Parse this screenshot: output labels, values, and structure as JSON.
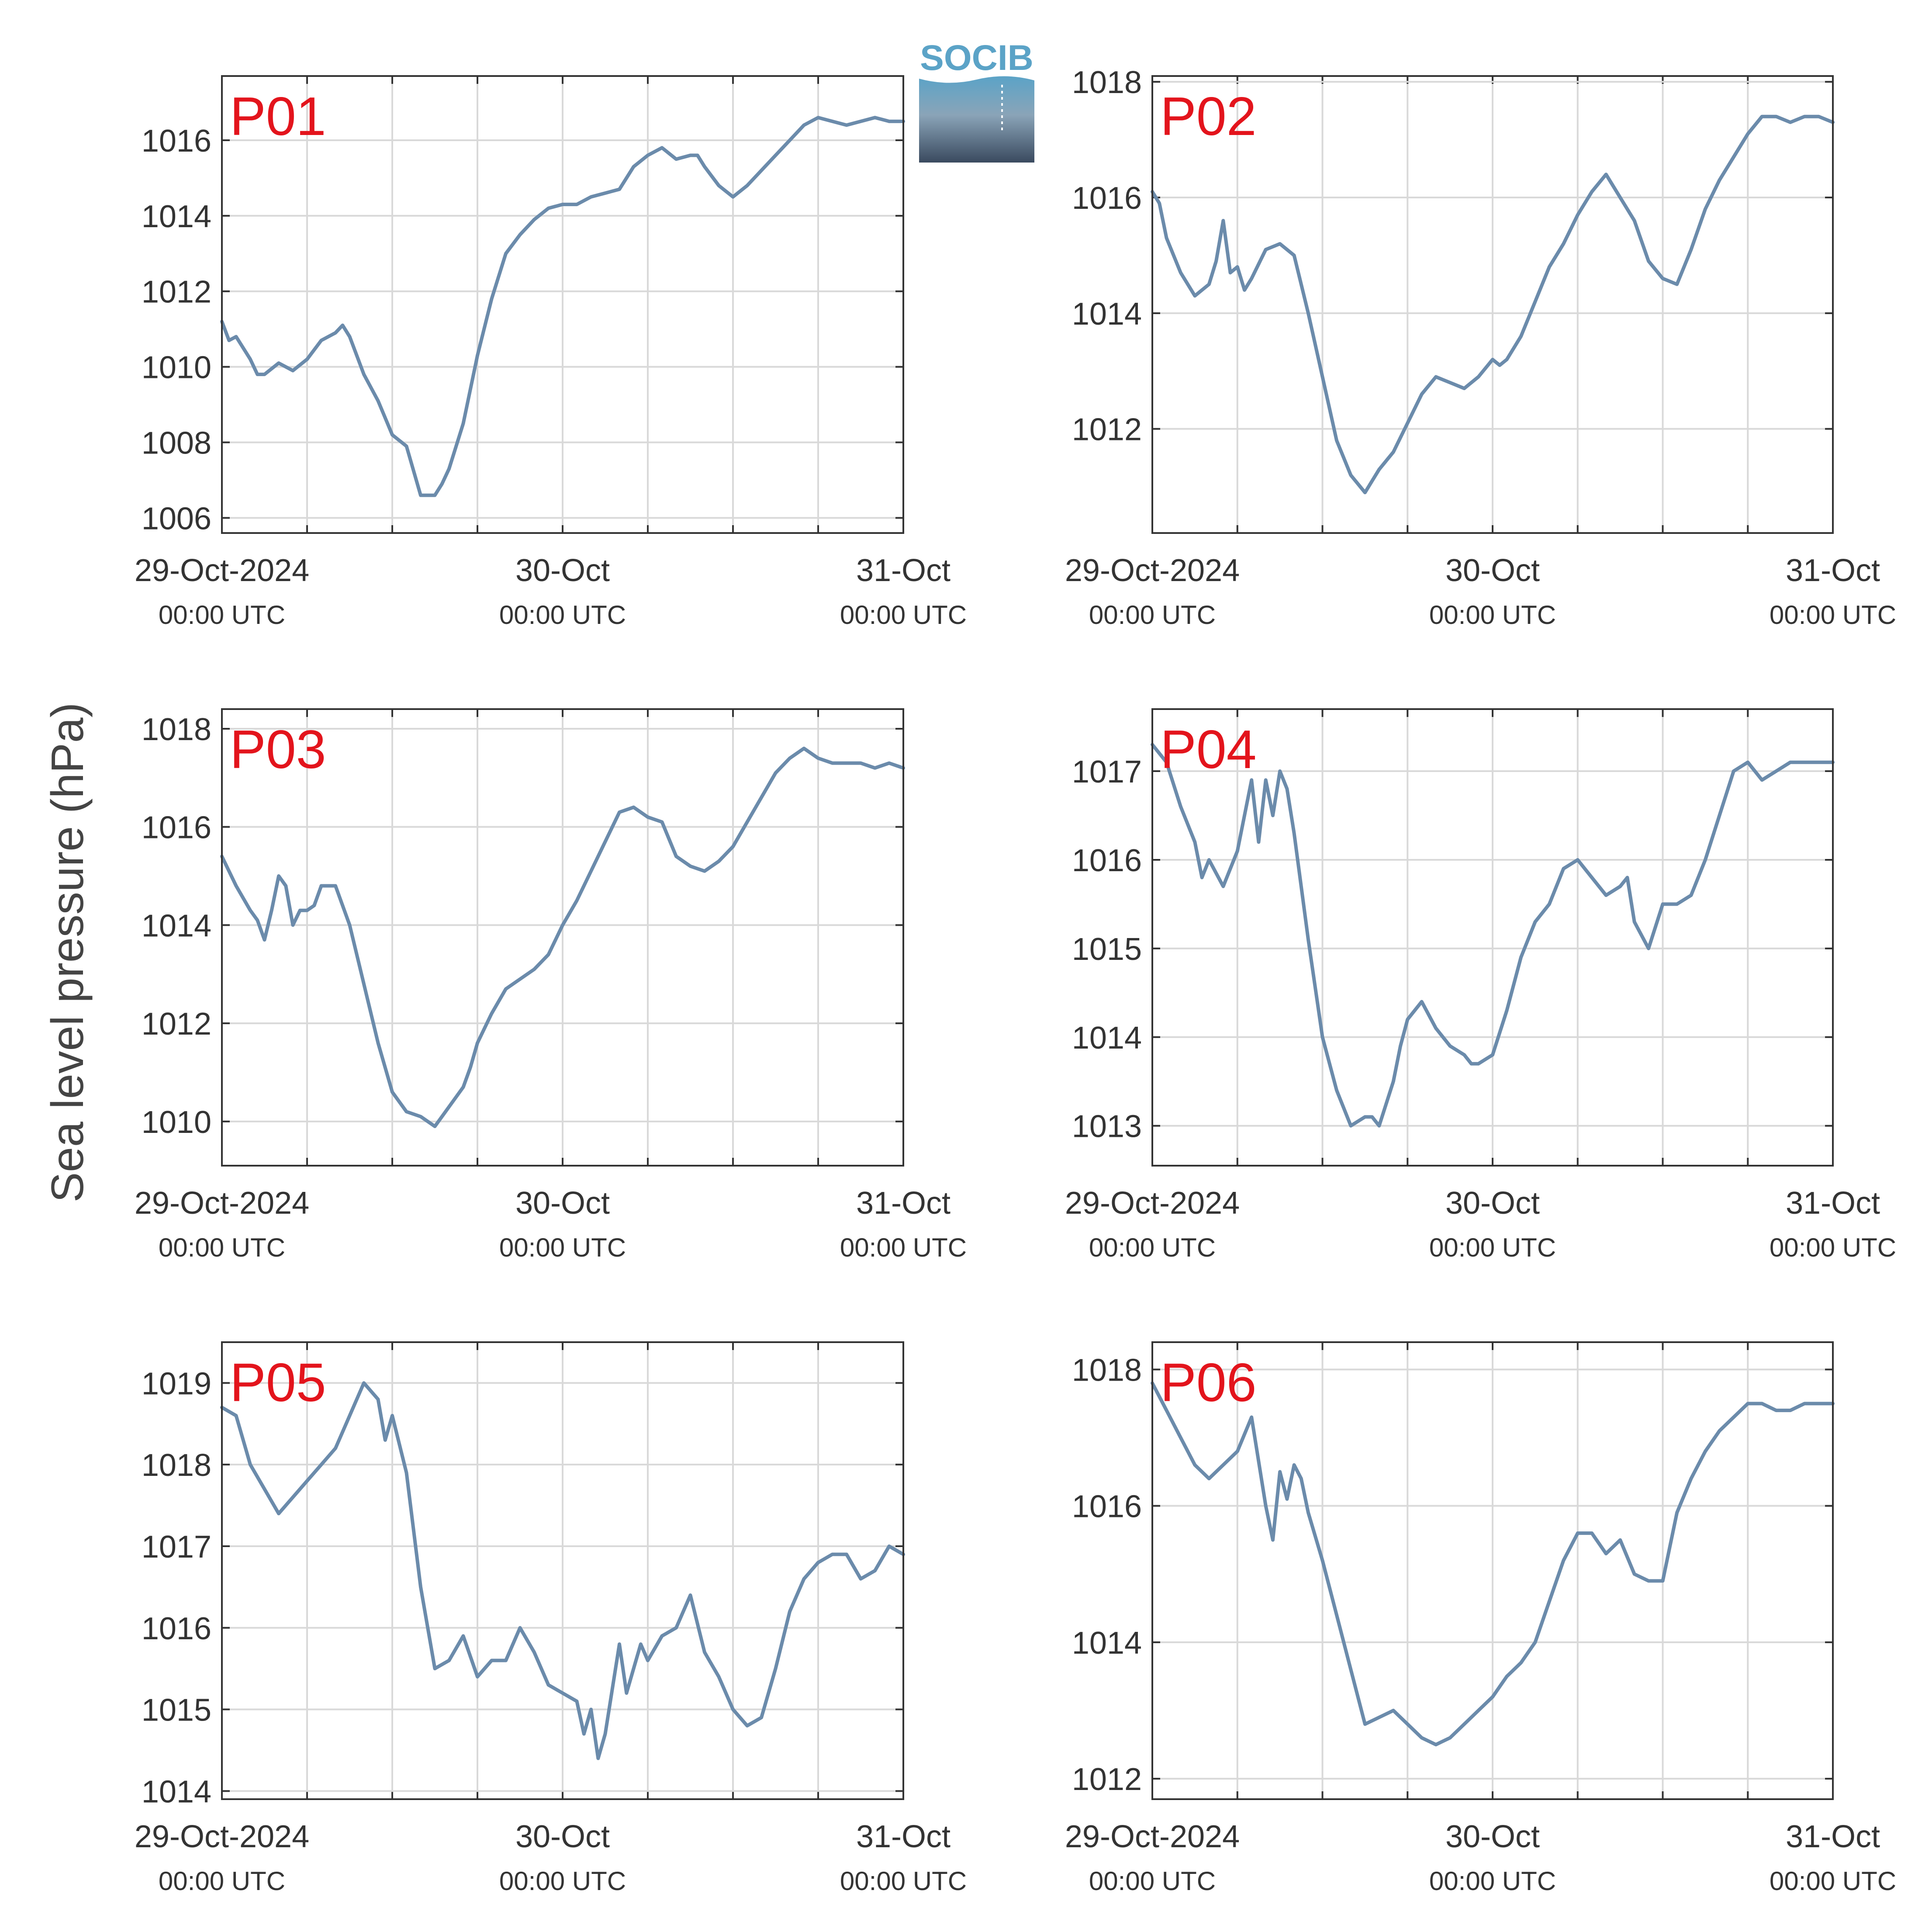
{
  "figure": {
    "ylabel": "Sea level pressure (hPa)",
    "line_color": "#6b8bab",
    "label_color": "#e3141c",
    "axis_color": "#333333",
    "grid_color": "#d9d9d9",
    "logo_text": "SOCIB",
    "logo_color": "#5ba3c7"
  },
  "x_ticks": [
    {
      "hours": 0,
      "line1": "29-Oct-2024",
      "line2": "00:00 UTC"
    },
    {
      "hours": 24,
      "line1": "30-Oct",
      "line2": "00:00 UTC"
    },
    {
      "hours": 48,
      "line1": "31-Oct",
      "line2": "00:00 UTC"
    }
  ],
  "chart_data": [
    {
      "type": "line",
      "title": "P01",
      "xlabel": "",
      "ylabel": "Sea level pressure (hPa)",
      "xlim_hours": [
        0,
        48
      ],
      "ylim": [
        1005.6,
        1017.7
      ],
      "yticks": [
        1006,
        1008,
        1010,
        1012,
        1014,
        1016
      ],
      "ytick_labels": [
        "1006",
        "1008",
        "1010",
        "1012",
        "1014",
        "1016"
      ],
      "grid": true,
      "x_hours": [
        0,
        0.5,
        1,
        2,
        2.5,
        3,
        4,
        5,
        6,
        7,
        8,
        8.5,
        9,
        10,
        11,
        12,
        13,
        14,
        15,
        15.5,
        16,
        17,
        18,
        19,
        20,
        21,
        22,
        23,
        24,
        25,
        26,
        27,
        28,
        29,
        30,
        31,
        32,
        33,
        33.5,
        34,
        35,
        36,
        37,
        38,
        39,
        40,
        41,
        42,
        43,
        44,
        45,
        46,
        47,
        48
      ],
      "values": [
        1011.2,
        1010.7,
        1010.8,
        1010.2,
        1009.8,
        1009.8,
        1010.1,
        1009.9,
        1010.2,
        1010.7,
        1010.9,
        1011.1,
        1010.8,
        1009.8,
        1009.1,
        1008.2,
        1007.9,
        1006.6,
        1006.6,
        1006.9,
        1007.3,
        1008.5,
        1010.3,
        1011.8,
        1013.0,
        1013.5,
        1013.9,
        1014.2,
        1014.3,
        1014.3,
        1014.5,
        1014.6,
        1014.7,
        1015.3,
        1015.6,
        1015.8,
        1015.5,
        1015.6,
        1015.6,
        1015.3,
        1014.8,
        1014.5,
        1014.8,
        1015.2,
        1015.6,
        1016.0,
        1016.4,
        1016.6,
        1016.5,
        1016.4,
        1016.5,
        1016.6,
        1016.5,
        1016.5
      ]
    },
    {
      "type": "line",
      "title": "P02",
      "xlabel": "",
      "ylabel": "Sea level pressure (hPa)",
      "xlim_hours": [
        0,
        48
      ],
      "ylim": [
        1010.2,
        1018.1
      ],
      "yticks": [
        1012,
        1014,
        1016,
        1018
      ],
      "ytick_labels": [
        "1012",
        "1014",
        "1016",
        "1018"
      ],
      "grid": true,
      "x_hours": [
        0,
        0.5,
        1,
        2,
        3,
        4,
        4.5,
        5,
        5.5,
        6,
        6.5,
        7,
        8,
        9,
        10,
        11,
        12,
        13,
        14,
        15,
        15.5,
        16,
        17,
        18,
        19,
        20,
        21,
        22,
        23,
        24,
        24.5,
        25,
        26,
        27,
        28,
        29,
        30,
        31,
        32,
        33,
        34,
        35,
        36,
        37,
        38,
        39,
        40,
        41,
        42,
        43,
        44,
        45,
        46,
        47,
        48
      ],
      "values": [
        1016.1,
        1015.9,
        1015.3,
        1014.7,
        1014.3,
        1014.5,
        1014.9,
        1015.6,
        1014.7,
        1014.8,
        1014.4,
        1014.6,
        1015.1,
        1015.2,
        1015.0,
        1014.0,
        1012.9,
        1011.8,
        1011.2,
        1010.9,
        1011.1,
        1011.3,
        1011.6,
        1012.1,
        1012.6,
        1012.9,
        1012.8,
        1012.7,
        1012.9,
        1013.2,
        1013.1,
        1013.2,
        1013.6,
        1014.2,
        1014.8,
        1015.2,
        1015.7,
        1016.1,
        1016.4,
        1016.0,
        1015.6,
        1014.9,
        1014.6,
        1014.5,
        1015.1,
        1015.8,
        1016.3,
        1016.7,
        1017.1,
        1017.4,
        1017.4,
        1017.3,
        1017.4,
        1017.4,
        1017.3
      ]
    },
    {
      "type": "line",
      "title": "P03",
      "xlabel": "",
      "ylabel": "Sea level pressure (hPa)",
      "xlim_hours": [
        0,
        48
      ],
      "ylim": [
        1009.1,
        1018.4
      ],
      "yticks": [
        1010,
        1012,
        1014,
        1016,
        1018
      ],
      "ytick_labels": [
        "1010",
        "1012",
        "1014",
        "1016",
        "1018"
      ],
      "grid": true,
      "x_hours": [
        0,
        1,
        2,
        2.5,
        3,
        3.5,
        4,
        4.5,
        5,
        5.5,
        6,
        6.5,
        7,
        8,
        9,
        10,
        11,
        12,
        13,
        14,
        15,
        16,
        17,
        17.5,
        18,
        19,
        20,
        21,
        22,
        23,
        24,
        25,
        26,
        27,
        28,
        29,
        30,
        31,
        32,
        33,
        34,
        35,
        36,
        37,
        38,
        39,
        40,
        41,
        42,
        43,
        44,
        45,
        46,
        47,
        48
      ],
      "values": [
        1015.4,
        1014.8,
        1014.3,
        1014.1,
        1013.7,
        1014.3,
        1015.0,
        1014.8,
        1014.0,
        1014.3,
        1014.3,
        1014.4,
        1014.8,
        1014.8,
        1014.0,
        1012.8,
        1011.6,
        1010.6,
        1010.2,
        1010.1,
        1009.9,
        1010.3,
        1010.7,
        1011.1,
        1011.6,
        1012.2,
        1012.7,
        1012.9,
        1013.1,
        1013.4,
        1014.0,
        1014.5,
        1015.1,
        1015.7,
        1016.3,
        1016.4,
        1016.2,
        1016.1,
        1015.4,
        1015.2,
        1015.1,
        1015.3,
        1015.6,
        1016.1,
        1016.6,
        1017.1,
        1017.4,
        1017.6,
        1017.4,
        1017.3,
        1017.3,
        1017.3,
        1017.2,
        1017.3,
        1017.2
      ]
    },
    {
      "type": "line",
      "title": "P04",
      "xlabel": "",
      "ylabel": "Sea level pressure (hPa)",
      "xlim_hours": [
        0,
        48
      ],
      "ylim": [
        1012.55,
        1017.7
      ],
      "yticks": [
        1013,
        1014,
        1015,
        1016,
        1017
      ],
      "ytick_labels": [
        "1013",
        "1014",
        "1015",
        "1016",
        "1017"
      ],
      "grid": true,
      "x_hours": [
        0,
        1,
        2,
        3,
        3.5,
        4,
        5,
        6,
        7,
        7.5,
        8,
        8.5,
        9,
        9.5,
        10,
        11,
        12,
        13,
        14,
        15,
        15.5,
        16,
        17,
        17.5,
        18,
        19,
        20,
        21,
        22,
        22.5,
        23,
        24,
        25,
        26,
        27,
        28,
        29,
        30,
        31,
        32,
        33,
        33.5,
        34,
        35,
        36,
        37,
        38,
        39,
        40,
        41,
        42,
        43,
        44,
        45,
        46,
        47,
        48
      ],
      "values": [
        1017.3,
        1017.1,
        1016.6,
        1016.2,
        1015.8,
        1016.0,
        1015.7,
        1016.1,
        1016.9,
        1016.2,
        1016.9,
        1016.5,
        1017.0,
        1016.8,
        1016.3,
        1015.1,
        1014.0,
        1013.4,
        1013.0,
        1013.1,
        1013.1,
        1013.0,
        1013.5,
        1013.9,
        1014.2,
        1014.4,
        1014.1,
        1013.9,
        1013.8,
        1013.7,
        1013.7,
        1013.8,
        1014.3,
        1014.9,
        1015.3,
        1015.5,
        1015.9,
        1016.0,
        1015.8,
        1015.6,
        1015.7,
        1015.8,
        1015.3,
        1015.0,
        1015.5,
        1015.5,
        1015.6,
        1016.0,
        1016.5,
        1017.0,
        1017.1,
        1016.9,
        1017.0,
        1017.1,
        1017.1,
        1017.1,
        1017.1
      ]
    },
    {
      "type": "line",
      "title": "P05",
      "xlabel": "",
      "ylabel": "Sea level pressure (hPa)",
      "xlim_hours": [
        0,
        48
      ],
      "ylim": [
        1013.9,
        1019.5
      ],
      "yticks": [
        1014,
        1015,
        1016,
        1017,
        1018,
        1019
      ],
      "ytick_labels": [
        "1014",
        "1015",
        "1016",
        "1017",
        "1018",
        "1019"
      ],
      "grid": true,
      "x_hours": [
        0,
        1,
        2,
        3,
        4,
        5,
        6,
        7,
        8,
        9,
        10,
        11,
        11.5,
        12,
        13,
        14,
        15,
        16,
        17,
        18,
        19,
        20,
        21,
        22,
        23,
        24,
        25,
        25.5,
        26,
        26.5,
        27,
        28,
        28.5,
        29,
        29.5,
        30,
        31,
        32,
        33,
        34,
        35,
        36,
        37,
        38,
        39,
        40,
        41,
        42,
        43,
        44,
        45,
        46,
        47,
        48
      ],
      "values": [
        1018.7,
        1018.6,
        1018.0,
        1017.7,
        1017.4,
        1017.6,
        1017.8,
        1018.0,
        1018.2,
        1018.6,
        1019.0,
        1018.8,
        1018.3,
        1018.6,
        1017.9,
        1016.5,
        1015.5,
        1015.6,
        1015.9,
        1015.4,
        1015.6,
        1015.6,
        1016.0,
        1015.7,
        1015.3,
        1015.2,
        1015.1,
        1014.7,
        1015.0,
        1014.4,
        1014.7,
        1015.8,
        1015.2,
        1015.5,
        1015.8,
        1015.6,
        1015.9,
        1016.0,
        1016.4,
        1015.7,
        1015.4,
        1015.0,
        1014.8,
        1014.9,
        1015.5,
        1016.2,
        1016.6,
        1016.8,
        1016.9,
        1016.9,
        1016.6,
        1016.7,
        1017.0,
        1016.9
      ]
    },
    {
      "type": "line",
      "title": "P06",
      "xlabel": "",
      "ylabel": "Sea level pressure (hPa)",
      "xlim_hours": [
        0,
        48
      ],
      "ylim": [
        1011.7,
        1018.4
      ],
      "yticks": [
        1012,
        1014,
        1016,
        1018
      ],
      "ytick_labels": [
        "1012",
        "1014",
        "1016",
        "1018"
      ],
      "grid": true,
      "x_hours": [
        0,
        1,
        2,
        3,
        4,
        5,
        6,
        7,
        8,
        8.5,
        9,
        9.5,
        10,
        10.5,
        11,
        12,
        13,
        14,
        15,
        16,
        17,
        18,
        19,
        20,
        21,
        22,
        23,
        24,
        25,
        26,
        27,
        28,
        29,
        30,
        31,
        32,
        33,
        34,
        35,
        36,
        37,
        38,
        39,
        40,
        41,
        42,
        43,
        44,
        45,
        46,
        47,
        48
      ],
      "values": [
        1017.8,
        1017.4,
        1017.0,
        1016.6,
        1016.4,
        1016.6,
        1016.8,
        1017.3,
        1016.0,
        1015.5,
        1016.5,
        1016.1,
        1016.6,
        1016.4,
        1015.9,
        1015.2,
        1014.4,
        1013.6,
        1012.8,
        1012.9,
        1013.0,
        1012.8,
        1012.6,
        1012.5,
        1012.6,
        1012.8,
        1013.0,
        1013.2,
        1013.5,
        1013.7,
        1014.0,
        1014.6,
        1015.2,
        1015.6,
        1015.6,
        1015.3,
        1015.5,
        1015.0,
        1014.9,
        1014.9,
        1015.9,
        1016.4,
        1016.8,
        1017.1,
        1017.3,
        1017.5,
        1017.5,
        1017.4,
        1017.4,
        1017.5,
        1017.5,
        1017.5
      ]
    }
  ]
}
